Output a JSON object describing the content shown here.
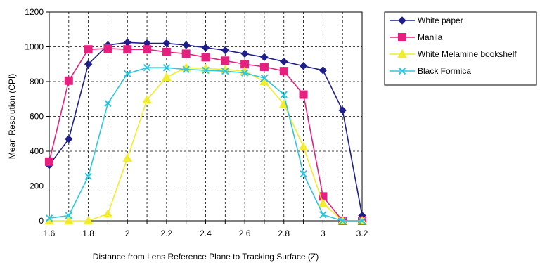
{
  "chart_data": {
    "type": "line",
    "title": "",
    "xlabel": "Distance from Lens Reference Plane to Tracking Surface (Z)",
    "ylabel": "Mean Resolution (CPI)",
    "xlim": [
      1.6,
      3.2
    ],
    "ylim": [
      0,
      1200
    ],
    "x_ticks": [
      1.6,
      1.8,
      2,
      2.2,
      2.4,
      2.6,
      2.8,
      3,
      3.2
    ],
    "x_tick_labels": [
      "1.6",
      "1.8",
      "2",
      "2.2",
      "2.4",
      "2.6",
      "2.8",
      "3",
      "3.2"
    ],
    "y_ticks": [
      0,
      200,
      400,
      600,
      800,
      1000,
      1200
    ],
    "y_tick_labels": [
      "0",
      "200",
      "400",
      "600",
      "800",
      "1000",
      "1200"
    ],
    "grid": true,
    "legend_position": "right",
    "x": [
      1.6,
      1.7,
      1.8,
      1.9,
      2.0,
      2.1,
      2.2,
      2.3,
      2.4,
      2.5,
      2.6,
      2.7,
      2.8,
      2.9,
      3.0,
      3.1,
      3.2
    ],
    "series": [
      {
        "name": "White paper",
        "color": "#1F1F8C",
        "marker": "diamond",
        "values": [
          320,
          470,
          900,
          1010,
          1025,
          1020,
          1020,
          1010,
          995,
          980,
          960,
          940,
          915,
          890,
          865,
          635,
          30
        ]
      },
      {
        "name": "Manila",
        "color": "#E6207F",
        "marker": "square",
        "values": [
          340,
          805,
          985,
          990,
          985,
          985,
          970,
          960,
          940,
          920,
          900,
          885,
          860,
          725,
          140,
          0,
          0
        ]
      },
      {
        "name": "White Melamine bookshelf",
        "color": "#F2EC2E",
        "marker": "triangle",
        "values": [
          0,
          0,
          0,
          40,
          360,
          695,
          825,
          880,
          875,
          870,
          860,
          800,
          670,
          425,
          100,
          0,
          0
        ]
      },
      {
        "name": "Black Formica",
        "color": "#2FC6E0",
        "marker": "x",
        "values": [
          15,
          30,
          255,
          675,
          845,
          880,
          880,
          870,
          865,
          860,
          850,
          820,
          725,
          270,
          35,
          0,
          0
        ]
      }
    ]
  }
}
